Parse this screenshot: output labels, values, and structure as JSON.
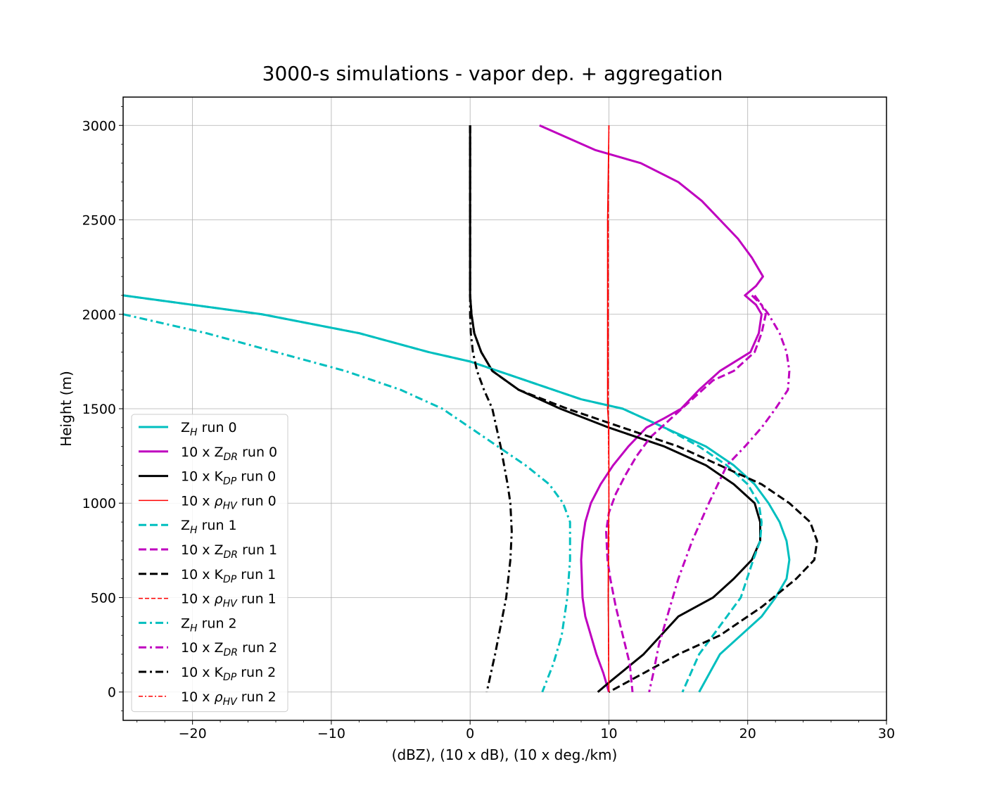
{
  "chart_data": {
    "type": "line",
    "title": "3000-s simulations - vapor dep. + aggregation",
    "xlabel": "(dBZ), (10 x dB), (10 x deg./km)",
    "ylabel": "Height (m)",
    "xlim": [
      -25,
      30
    ],
    "ylim": [
      -150,
      3150
    ],
    "xticks": [
      -20,
      -10,
      0,
      10,
      20,
      30
    ],
    "yticks": [
      0,
      500,
      1000,
      1500,
      2000,
      2500,
      3000
    ],
    "xtick_labels": [
      "−20",
      "−10",
      "0",
      "10",
      "20",
      "30"
    ],
    "ytick_labels": [
      "0",
      "500",
      "1000",
      "1500",
      "2000",
      "2500",
      "3000"
    ],
    "grid": true,
    "legend_position": "lower-left",
    "colors": {
      "cyan": "#00bfbf",
      "magenta": "#bf00bf",
      "black": "#000000",
      "red": "#ff0000"
    },
    "series": [
      {
        "name": "Z_H run 0",
        "legend_prefix": "Z",
        "legend_sub": "H",
        "legend_suffix": " run 0",
        "color": "cyan",
        "style": "solid",
        "width": 3,
        "x": [
          -25,
          -15,
          -8,
          -3,
          0,
          4,
          8,
          11,
          14,
          17,
          19,
          20.5,
          21.5,
          22.3,
          22.8,
          23,
          22.8,
          22,
          21,
          19.5,
          18,
          16.5
        ],
        "y": [
          2100,
          2000,
          1900,
          1800,
          1750,
          1650,
          1550,
          1500,
          1400,
          1300,
          1200,
          1100,
          1000,
          900,
          800,
          700,
          600,
          500,
          400,
          300,
          200,
          0
        ]
      },
      {
        "name": "10 x Z_DR run 0",
        "legend_prefix": "10 x Z",
        "legend_sub": "DR",
        "legend_suffix": " run 0",
        "color": "magenta",
        "style": "solid",
        "width": 3,
        "x": [
          5,
          9,
          12.3,
          15,
          16.7,
          18,
          19.3,
          20.3,
          21.1,
          20.6,
          19.8,
          20.6,
          21,
          20.8,
          20.2,
          18,
          16.5,
          15.2,
          14,
          12.7,
          11.4,
          10.3,
          9.4,
          8.7,
          8.3,
          8.1,
          8,
          8.1,
          8.3,
          8.7,
          9.1,
          9.6,
          10
        ],
        "y": [
          3000,
          2870,
          2800,
          2700,
          2600,
          2500,
          2400,
          2300,
          2200,
          2150,
          2100,
          2050,
          2000,
          1900,
          1800,
          1700,
          1600,
          1500,
          1450,
          1400,
          1300,
          1200,
          1100,
          1000,
          900,
          800,
          700,
          500,
          400,
          300,
          200,
          100,
          0
        ]
      },
      {
        "name": "10 x K_DP run 0",
        "legend_prefix": "10 x K",
        "legend_sub": "DP",
        "legend_suffix": " run 0",
        "color": "black",
        "style": "solid",
        "width": 3,
        "x": [
          0,
          0,
          0,
          0.1,
          0.3,
          0.8,
          1.6,
          3.5,
          6.5,
          10,
          14,
          17,
          19,
          20.5,
          20.9,
          20.9,
          20.3,
          19,
          17.5,
          15,
          12.5,
          10,
          9.2
        ],
        "y": [
          3000,
          2500,
          2100,
          2000,
          1900,
          1800,
          1700,
          1600,
          1500,
          1400,
          1300,
          1200,
          1100,
          1000,
          900,
          800,
          700,
          600,
          500,
          400,
          200,
          50,
          0
        ]
      },
      {
        "name": "10 x ρ_HV run 0",
        "legend_prefix": "10 x ",
        "legend_greek": "ρ",
        "legend_sub": "HV",
        "legend_suffix": " run 0",
        "color": "red",
        "style": "solid",
        "width": 1.5,
        "x": [
          10,
          9.9,
          9.9,
          9.9,
          9.9,
          10,
          10,
          10,
          9.95,
          9.95,
          10
        ],
        "y": [
          3000,
          2500,
          2000,
          1700,
          1500,
          1400,
          1200,
          1000,
          800,
          500,
          0
        ]
      },
      {
        "name": "Z_H run 1",
        "legend_prefix": "Z",
        "legend_sub": "H",
        "legend_suffix": " run 1",
        "color": "cyan",
        "style": "dashed",
        "width": 3,
        "x": [
          -25,
          -15,
          -8,
          -3,
          0,
          4,
          8,
          11,
          14,
          16.5,
          18.5,
          20,
          20.8,
          21,
          20.9,
          20.4,
          19.5,
          18.5,
          17.5,
          16.5,
          15.3
        ],
        "y": [
          2100,
          2000,
          1900,
          1800,
          1750,
          1650,
          1550,
          1500,
          1400,
          1300,
          1200,
          1100,
          1000,
          900,
          800,
          700,
          500,
          400,
          300,
          200,
          0
        ]
      },
      {
        "name": "10 x Z_DR run 1",
        "legend_prefix": "10 x Z",
        "legend_sub": "DR",
        "legend_suffix": " run 1",
        "color": "magenta",
        "style": "dashed",
        "width": 3,
        "x": [
          20.3,
          21,
          21.3,
          21,
          20.5,
          19,
          17.5,
          16,
          14.5,
          13,
          12,
          11.2,
          10.5,
          10,
          9.8,
          9.9,
          10.1,
          10.5,
          11,
          11.5,
          11.7
        ],
        "y": [
          2100,
          2050,
          2000,
          1900,
          1800,
          1700,
          1650,
          1550,
          1450,
          1350,
          1250,
          1150,
          1050,
          950,
          850,
          700,
          600,
          450,
          300,
          150,
          0
        ]
      },
      {
        "name": "10 x K_DP run 1",
        "legend_prefix": "10 x K",
        "legend_sub": "DP",
        "legend_suffix": " run 1",
        "color": "black",
        "style": "dashed",
        "width": 3,
        "x": [
          0,
          0,
          0,
          0.1,
          0.3,
          0.8,
          1.6,
          3.5,
          7,
          11,
          15,
          18,
          21,
          23,
          24.5,
          25,
          24.8,
          23.5,
          21,
          18,
          15,
          12.5,
          10
        ],
        "y": [
          3000,
          2500,
          2100,
          2000,
          1900,
          1800,
          1700,
          1600,
          1500,
          1400,
          1300,
          1200,
          1100,
          1000,
          900,
          800,
          700,
          600,
          450,
          300,
          200,
          100,
          0
        ]
      },
      {
        "name": "10 x ρ_HV run 1",
        "legend_prefix": "10 x ",
        "legend_greek": "ρ",
        "legend_sub": "HV",
        "legend_suffix": " run 1",
        "color": "red",
        "style": "dashed",
        "width": 1.5,
        "x": [
          10,
          9.95,
          9.95,
          9.95,
          10,
          10,
          9.95,
          10
        ],
        "y": [
          3000,
          2500,
          2000,
          1500,
          1200,
          800,
          500,
          0
        ]
      },
      {
        "name": "Z_H run 2",
        "legend_prefix": "Z",
        "legend_sub": "H",
        "legend_suffix": " run 2",
        "color": "cyan",
        "style": "dashdot",
        "width": 3,
        "x": [
          -25,
          -19,
          -14,
          -9,
          -5,
          -2,
          0,
          2,
          4,
          5.7,
          6.7,
          7.2,
          7.2,
          7,
          6.6,
          6,
          5.2
        ],
        "y": [
          2000,
          1900,
          1800,
          1700,
          1600,
          1500,
          1400,
          1300,
          1200,
          1100,
          1000,
          900,
          700,
          500,
          300,
          150,
          0
        ]
      },
      {
        "name": "10 x Z_DR run 2",
        "legend_prefix": "10 x Z",
        "legend_sub": "DR",
        "legend_suffix": " run 2",
        "color": "magenta",
        "style": "dashdot",
        "width": 3,
        "x": [
          20.5,
          21.5,
          22.3,
          22.8,
          23,
          22.9,
          22,
          21,
          19.8,
          18.5,
          17.2,
          16,
          15,
          14.2,
          13.6,
          13.2,
          12.9
        ],
        "y": [
          2100,
          2000,
          1900,
          1800,
          1700,
          1600,
          1500,
          1400,
          1300,
          1200,
          1000,
          800,
          600,
          400,
          250,
          100,
          0
        ]
      },
      {
        "name": "10 x K_DP run 2",
        "legend_prefix": "10 x K",
        "legend_sub": "DP",
        "legend_suffix": " run 2",
        "color": "black",
        "style": "dashdot",
        "width": 3,
        "x": [
          0,
          0,
          0,
          0.05,
          0.2,
          0.5,
          1,
          1.6,
          2.2,
          2.7,
          2.9,
          3,
          2.9,
          2.6,
          2.2,
          1.8,
          1.5,
          1.2
        ],
        "y": [
          3000,
          2500,
          2000,
          1900,
          1800,
          1700,
          1600,
          1500,
          1300,
          1100,
          1000,
          850,
          700,
          500,
          350,
          200,
          100,
          0
        ]
      },
      {
        "name": "10 x ρ_HV run 2",
        "legend_prefix": "10 x ",
        "legend_greek": "ρ",
        "legend_sub": "HV",
        "legend_suffix": " run 2",
        "color": "red",
        "style": "dashdot",
        "width": 1.5,
        "x": [
          10,
          9.95,
          9.95,
          9.95,
          10,
          9.95,
          10
        ],
        "y": [
          3000,
          2500,
          2000,
          1500,
          1000,
          500,
          0
        ]
      }
    ]
  }
}
